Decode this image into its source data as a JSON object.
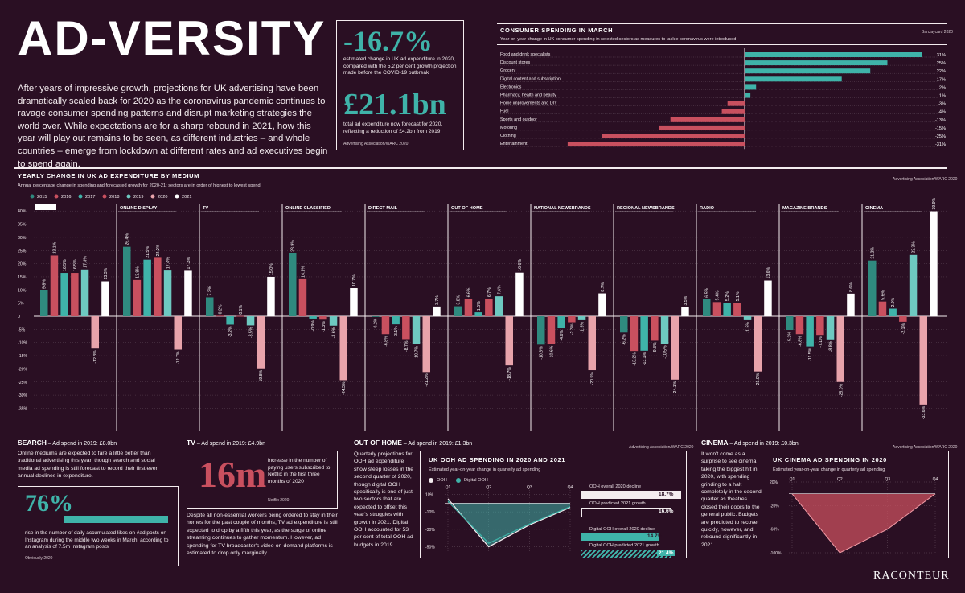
{
  "title": "AD-VERSITY",
  "intro": "After years of impressive growth, projections for UK advertising have been dramatically scaled back for 2020 as the coronavirus pandemic continues to ravage consumer spending patterns and disrupt marketing strategies the world over. While expectations are for a sharp rebound in 2021, how this year will play out remains to be seen, as different industries – and whole countries – emerge from lockdown at different rates and ad executives begin to spend again.",
  "stats": {
    "stat1_value": "-16.7%",
    "stat1_text": "estimated change in UK ad expenditure in 2020, compared with the 5.2 per cent growth projection made before the COVID-19 outbreak",
    "stat2_value": "£21.1bn",
    "stat2_text": "total ad expenditure now forecast for 2020, reflecting a reduction of £4.2bn from 2019",
    "source": "Advertising Association/WARC 2020"
  },
  "consumer": {
    "header": "CONSUMER SPENDING IN MARCH",
    "subtitle": "Year-on-year change in UK consumer spending in selected sectors as measures to tackle coronavirus were introduced",
    "source": "Barclaycard 2020"
  },
  "yearly": {
    "header": "YEARLY CHANGE IN UK AD EXPENDITURE BY MEDIUM",
    "subtitle": "Annual percentage change in spending and forecasted growth for 2020-21; sectors are in order of highest to lowest spend",
    "source": "Advertising Association/WARC 2020"
  },
  "search": {
    "heading": "SEARCH",
    "spend": " – Ad spend in 2019: £8.0bn",
    "text": "Online mediums are expected to fare a little better than traditional advertising this year, though search and social media ad spending is still forecast to record their first ever annual declines in expenditure.",
    "stat": "76%",
    "stat_text": "rise in the number of daily accumulated likes on #ad posts on Instagram during the middle two weeks in March, according to an analysis of 7.5m Instagram posts",
    "source": "Obviously 2020"
  },
  "tv": {
    "heading": "TV",
    "spend": " – Ad spend in 2019: £4.9bn",
    "stat": "16m",
    "stat_text": "increase in the number of paying users subscribed to Netflix in the first three months of 2020",
    "source": "Netflix 2020",
    "text": "Despite all non-essential workers being ordered to stay in their homes for the past couple of months, TV ad expenditure is still expected to drop by a fifth this year, as the surge of online streaming continues to gather momentum. However, ad spending for TV broadcaster's video-on-demand platforms is estimated to drop only marginally."
  },
  "ooh": {
    "heading": "OUT OF HOME",
    "spend": " – Ad spend in 2019: £1.3bn",
    "source": "Advertising Association/WARC 2020",
    "text": "Quarterly projections for OOH ad expenditure show steep losses in the second quarter of 2020, though digital OOH specifically is one of just two sectors that are expected to offset this year's struggles with growth in 2021. Digital OOH accounted for 53 per cent of total OOH ad budgets in 2019.",
    "chart_title": "UK OOH AD SPENDING IN 2020 AND 2021",
    "chart_sub": "Estimated year-on-year change in quarterly ad spending",
    "legend_ooh": "OOH",
    "legend_digital": "Digital OOH",
    "side": [
      {
        "label": "OOH overall 2020 decline",
        "value": "18.7%"
      },
      {
        "label": "OOH predicted 2021 growth",
        "value": "16.6%"
      },
      {
        "label": "Digital OOH overall 2020 decline",
        "value": "14.7%"
      },
      {
        "label": "Digital OOH predicted 2021 growth",
        "value": "21.4%"
      }
    ]
  },
  "cinema": {
    "heading": "CINEMA",
    "spend": " – Ad spend in 2019: £0.3bn",
    "source": "Advertising Association/WARC 2020",
    "text": "It won't come as a surprise to see cinema taking the biggest hit in 2020, with spending grinding to a halt completely in the second quarter as theatres closed their doors to the general public. Budgets are predicted to recover quickly, however, and rebound significantly in 2021.",
    "chart_title": "UK CINEMA AD SPENDING IN 2020",
    "chart_sub": "Estimated year-on-year change in quarterly ad spending"
  },
  "brand": "RACONTEUR",
  "colors": {
    "background": "#2a0f23",
    "teal": "#3fb3a9",
    "red": "#c9505f",
    "pink": "#e8a3ab",
    "white": "#ffffff"
  },
  "chart_data": [
    {
      "type": "bar",
      "title": "CONSUMER SPENDING IN MARCH",
      "orientation": "horizontal",
      "categories": [
        "Food and drink specialists",
        "Discount stores",
        "Grocery",
        "Digital content and subscription",
        "Electronics",
        "Pharmacy, health and beauty",
        "Home improvements and DIY",
        "Fuel",
        "Sports and outdoor",
        "Motoring",
        "Clothing",
        "Entertainment"
      ],
      "values": [
        31,
        25,
        22,
        17,
        2,
        1,
        -3,
        -4,
        -13,
        -15,
        -25,
        -31
      ],
      "value_labels": [
        "31%",
        "25%",
        "22%",
        "17%",
        "2%",
        "1%",
        "-3%",
        "-4%",
        "-13%",
        "-15%",
        "-25%",
        "-31%"
      ]
    },
    {
      "type": "bar",
      "title": "YEARLY CHANGE IN UK AD EXPENDITURE BY MEDIUM",
      "legend": [
        "2015",
        "2016",
        "2017",
        "2018",
        "2019",
        "2020",
        "2021"
      ],
      "ylim": [
        -35,
        40
      ],
      "yticks": [
        "40%",
        "35%",
        "30%",
        "25%",
        "20%",
        "15%",
        "10%",
        "5%",
        "0",
        "-5%",
        "-10%",
        "-15%",
        "-20%",
        "-25%",
        "-30%",
        "-35%"
      ],
      "groups": [
        {
          "name": "",
          "values": [
            9.8,
            23.1,
            16.5,
            16.5,
            17.8,
            -12.3,
            13.3
          ]
        },
        {
          "name": "ONLINE DISPLAY",
          "values": [
            26.4,
            13.8,
            21.5,
            22.2,
            17.4,
            -12.7,
            17.3
          ]
        },
        {
          "name": "TV",
          "values": [
            7.2,
            0.2,
            -3.2,
            0.1,
            -3.5,
            -19.8,
            15.0
          ]
        },
        {
          "name": "ONLINE CLASSIFIED",
          "values": [
            23.9,
            14.1,
            -0.9,
            -1.3,
            -3.6,
            -24.3,
            10.7
          ]
        },
        {
          "name": "DIRECT MAIL",
          "values": [
            -0.2,
            -6.8,
            -3.1,
            -8.7,
            -10.7,
            -21.2,
            3.7
          ]
        },
        {
          "name": "OUT OF HOME",
          "values": [
            3.8,
            6.6,
            1.5,
            6.7,
            7.6,
            -18.7,
            16.6
          ]
        },
        {
          "name": "NATIONAL NEWSBRANDS",
          "values": [
            -10.8,
            -10.6,
            -4.6,
            -2.3,
            -1.5,
            -20.5,
            8.7
          ]
        },
        {
          "name": "REGIONAL NEWSBRANDS",
          "values": [
            -6.2,
            -13.2,
            -13.1,
            -9.3,
            -10.5,
            -24.1,
            3.5
          ]
        },
        {
          "name": "RADIO",
          "values": [
            6.5,
            5.4,
            5.2,
            5.1,
            -1.5,
            -21.0,
            13.6
          ]
        },
        {
          "name": "MAGAZINE BRANDS",
          "values": [
            -5.2,
            -6.8,
            -11.5,
            -7.1,
            -8.8,
            -25.0,
            8.6
          ]
        },
        {
          "name": "CINEMA",
          "values": [
            21.2,
            5.6,
            2.9,
            -2.1,
            23.3,
            -33.6,
            39.9
          ]
        }
      ]
    },
    {
      "type": "area",
      "title": "UK OOH AD SPENDING IN 2020 AND 2021",
      "categories": [
        "Q1",
        "Q2",
        "Q3",
        "Q4"
      ],
      "yticks": [
        "10%",
        "-10%",
        "-30%",
        "-50%"
      ],
      "ylim": [
        -55,
        15
      ],
      "series": [
        {
          "name": "OOH",
          "values": [
            5,
            -50,
            -25,
            -5
          ]
        },
        {
          "name": "Digital OOH",
          "values": [
            2,
            -46,
            -24,
            -4
          ]
        }
      ]
    },
    {
      "type": "area",
      "title": "UK CINEMA AD SPENDING IN 2020",
      "categories": [
        "Q1",
        "Q2",
        "Q3",
        "Q4"
      ],
      "yticks": [
        "20%",
        "-20%",
        "-60%",
        "-100%"
      ],
      "ylim": [
        -100,
        20
      ],
      "series": [
        {
          "values": [
            0,
            -100,
            -60,
            0
          ]
        }
      ]
    }
  ]
}
